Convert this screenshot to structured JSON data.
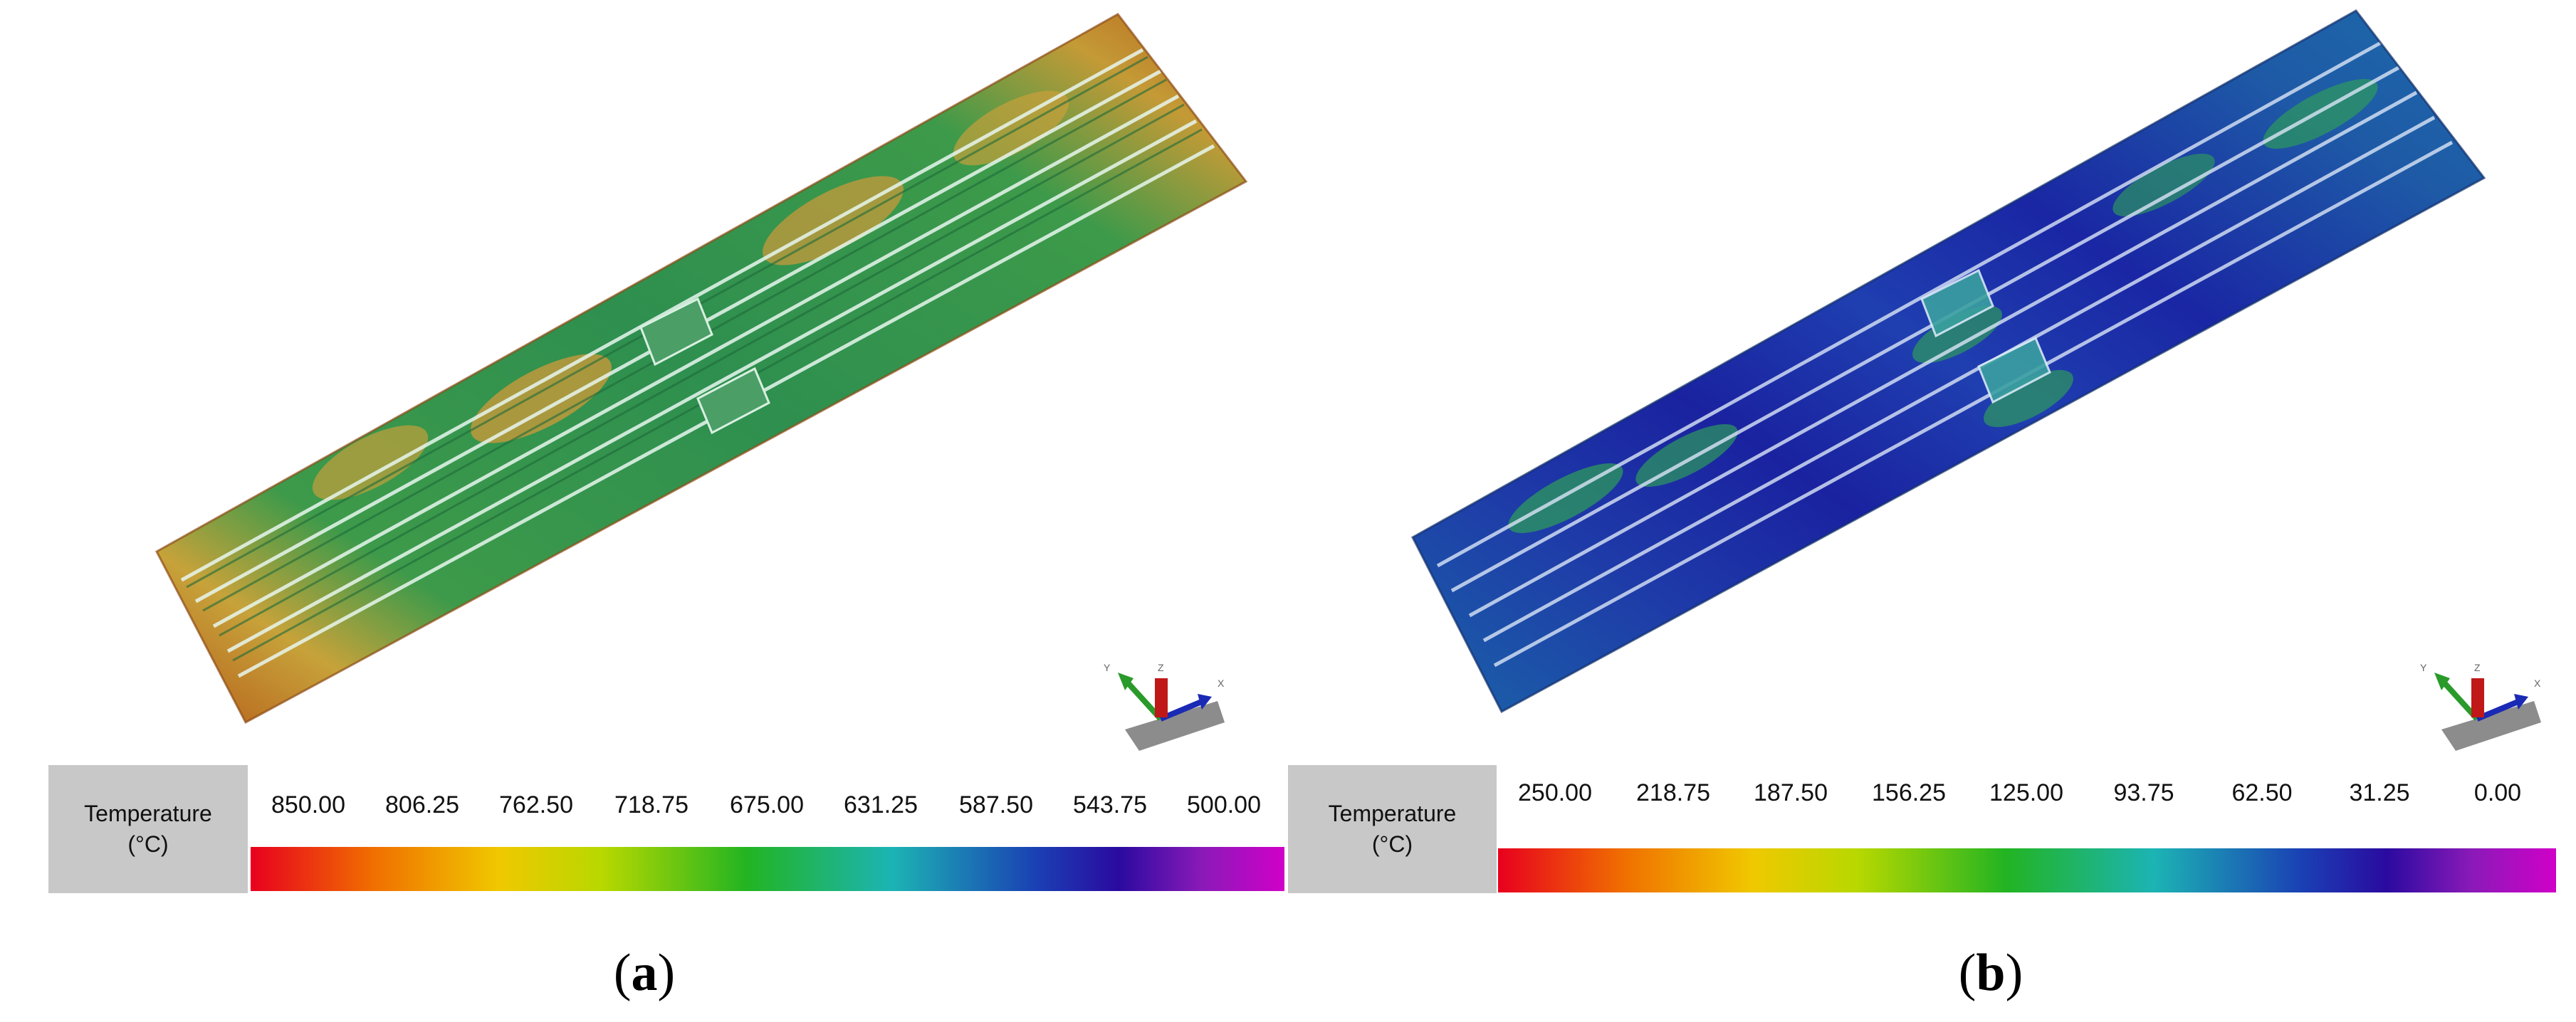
{
  "panels": [
    {
      "caption_letter": "a",
      "legend_title_line1": "Temperature",
      "legend_title_line2": "(°C)",
      "ticks": [
        "850.00",
        "806.25",
        "762.50",
        "718.75",
        "675.00",
        "631.25",
        "587.50",
        "543.75",
        "500.00"
      ],
      "colors": {
        "base": "#2e8f4a",
        "edge": "#b56a1c",
        "warm": "#d08a2a"
      }
    },
    {
      "caption_letter": "b",
      "legend_title_line1": "Temperature",
      "legend_title_line2": "(°C)",
      "ticks": [
        "250.00",
        "218.75",
        "187.50",
        "156.25",
        "125.00",
        "93.75",
        "62.50",
        "31.25",
        "0.00"
      ],
      "colors": {
        "base": "#1a5e9e",
        "edge": "#1c5fa3",
        "warm": "#2e9a60"
      }
    }
  ],
  "axis_labels": {
    "x": "X",
    "y": "Y",
    "z": "Z"
  }
}
